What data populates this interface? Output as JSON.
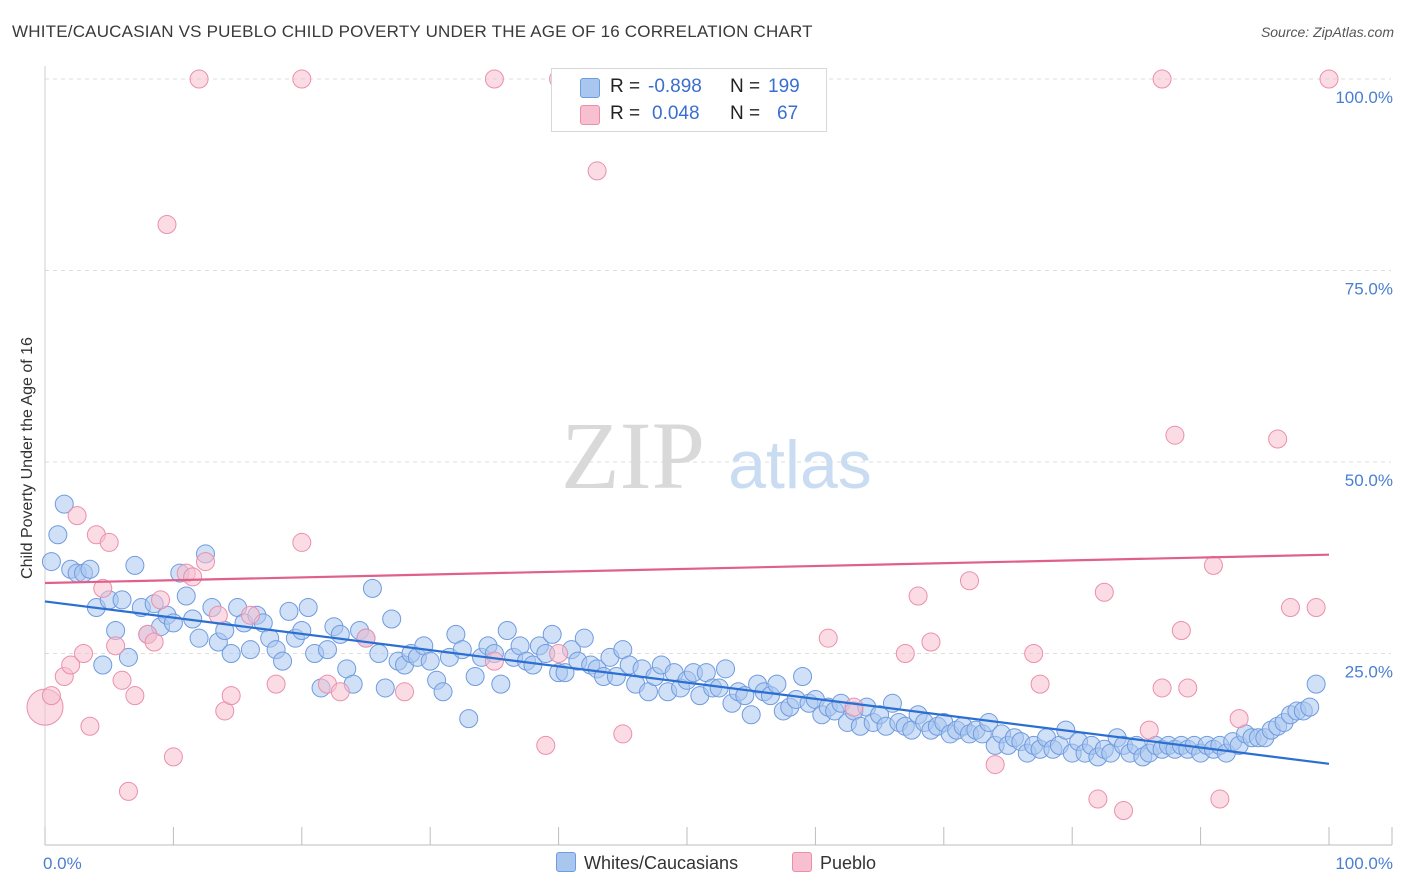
{
  "header": {
    "title": "WHITE/CAUCASIAN VS PUEBLO CHILD POVERTY UNDER THE AGE OF 16 CORRELATION CHART",
    "source": "Source: ZipAtlas.com"
  },
  "watermark": {
    "zip": "ZIP",
    "atlas": "atlas"
  },
  "legend": {
    "r_label": "R =",
    "n_label": "N =",
    "rows": [
      {
        "r": "-0.898",
        "n": "199",
        "color": "#a9c6ef",
        "border": "#6f9be0"
      },
      {
        "r": "0.048",
        "n": "67",
        "color": "#f7bfd0",
        "border": "#eb8fac"
      }
    ]
  },
  "bottom_legend": [
    {
      "label": "Whites/Caucasians",
      "color": "#a9c6ef",
      "border": "#6f9be0"
    },
    {
      "label": "Pueblo",
      "color": "#f7bfd0",
      "border": "#eb8fac"
    }
  ],
  "chart_data": {
    "type": "scatter",
    "title": "WHITE/CAUCASIAN VS PUEBLO CHILD POVERTY UNDER THE AGE OF 16 CORRELATION CHART",
    "xlabel": "",
    "ylabel": "Child Poverty Under the Age of 16",
    "xlim": [
      0,
      100
    ],
    "ylim": [
      0,
      100
    ],
    "x_tick_labels": [
      "0.0%",
      "100.0%"
    ],
    "y_tick_labels": [
      "25.0%",
      "50.0%",
      "75.0%",
      "100.0%"
    ],
    "y_tick_values": [
      25,
      50,
      75,
      100
    ],
    "grid": true,
    "series": [
      {
        "name": "Whites/Caucasians",
        "color": "#a9c6ef",
        "stroke": "#6f9be0",
        "trend": {
          "x": [
            0,
            100
          ],
          "y": [
            31.8,
            10.6
          ],
          "color": "#2b6fd1"
        },
        "points": [
          [
            0.5,
            37
          ],
          [
            1,
            40.5
          ],
          [
            1.5,
            44.5
          ],
          [
            2,
            36
          ],
          [
            2.5,
            35.5
          ],
          [
            3,
            35.5
          ],
          [
            3.5,
            36
          ],
          [
            4,
            31
          ],
          [
            4.5,
            23.5
          ],
          [
            5,
            32
          ],
          [
            5.5,
            28
          ],
          [
            6,
            32
          ],
          [
            6.5,
            24.5
          ],
          [
            7,
            36.5
          ],
          [
            7.5,
            31
          ],
          [
            8,
            27.5
          ],
          [
            8.5,
            31.5
          ],
          [
            9,
            28.5
          ],
          [
            9.5,
            30
          ],
          [
            10,
            29
          ],
          [
            10.5,
            35.5
          ],
          [
            11,
            32.5
          ],
          [
            11.5,
            29.5
          ],
          [
            12,
            27
          ],
          [
            12.5,
            38
          ],
          [
            13,
            31
          ],
          [
            13.5,
            26.5
          ],
          [
            14,
            28
          ],
          [
            14.5,
            25
          ],
          [
            15,
            31
          ],
          [
            15.5,
            29
          ],
          [
            16,
            25.5
          ],
          [
            16.5,
            30
          ],
          [
            17,
            29
          ],
          [
            17.5,
            27
          ],
          [
            18,
            25.5
          ],
          [
            18.5,
            24
          ],
          [
            19,
            30.5
          ],
          [
            19.5,
            27
          ],
          [
            20,
            28
          ],
          [
            20.5,
            31
          ],
          [
            21,
            25
          ],
          [
            21.5,
            20.5
          ],
          [
            22,
            25.5
          ],
          [
            22.5,
            28.5
          ],
          [
            23,
            27.5
          ],
          [
            23.5,
            23
          ],
          [
            24,
            21
          ],
          [
            24.5,
            28
          ],
          [
            25,
            27
          ],
          [
            25.5,
            33.5
          ],
          [
            26,
            25
          ],
          [
            26.5,
            20.5
          ],
          [
            27,
            29.5
          ],
          [
            27.5,
            24
          ],
          [
            28,
            23.5
          ],
          [
            28.5,
            25
          ],
          [
            29,
            24.5
          ],
          [
            29.5,
            26
          ],
          [
            30,
            24
          ],
          [
            30.5,
            21.5
          ],
          [
            31,
            20
          ],
          [
            31.5,
            24.5
          ],
          [
            32,
            27.5
          ],
          [
            32.5,
            25.5
          ],
          [
            33,
            16.5
          ],
          [
            33.5,
            22
          ],
          [
            34,
            24.5
          ],
          [
            34.5,
            26
          ],
          [
            35,
            25
          ],
          [
            35.5,
            21
          ],
          [
            36,
            28
          ],
          [
            36.5,
            24.5
          ],
          [
            37,
            26
          ],
          [
            37.5,
            24
          ],
          [
            38,
            23.5
          ],
          [
            38.5,
            26
          ],
          [
            39,
            25
          ],
          [
            39.5,
            27.5
          ],
          [
            40,
            22.5
          ],
          [
            40.5,
            22.5
          ],
          [
            41,
            25.5
          ],
          [
            41.5,
            24
          ],
          [
            42,
            27
          ],
          [
            42.5,
            23.5
          ],
          [
            43,
            23
          ],
          [
            43.5,
            22
          ],
          [
            44,
            24.5
          ],
          [
            44.5,
            22
          ],
          [
            45,
            25.5
          ],
          [
            45.5,
            23.5
          ],
          [
            46,
            21
          ],
          [
            46.5,
            23
          ],
          [
            47,
            20
          ],
          [
            47.5,
            22
          ],
          [
            48,
            23.5
          ],
          [
            48.5,
            20
          ],
          [
            49,
            22.5
          ],
          [
            49.5,
            20.5
          ],
          [
            50,
            21.5
          ],
          [
            50.5,
            22.5
          ],
          [
            51,
            19.5
          ],
          [
            51.5,
            22.5
          ],
          [
            52,
            20.5
          ],
          [
            52.5,
            20.5
          ],
          [
            53,
            23
          ],
          [
            53.5,
            18.5
          ],
          [
            54,
            20
          ],
          [
            54.5,
            19.5
          ],
          [
            55,
            17
          ],
          [
            55.5,
            21
          ],
          [
            56,
            20
          ],
          [
            56.5,
            19.5
          ],
          [
            57,
            21
          ],
          [
            57.5,
            17.5
          ],
          [
            58,
            18
          ],
          [
            58.5,
            19
          ],
          [
            59,
            22
          ],
          [
            59.5,
            18.5
          ],
          [
            60,
            19
          ],
          [
            60.5,
            17
          ],
          [
            61,
            18
          ],
          [
            61.5,
            17.5
          ],
          [
            62,
            18.5
          ],
          [
            62.5,
            16
          ],
          [
            63,
            17.5
          ],
          [
            63.5,
            15.5
          ],
          [
            64,
            18
          ],
          [
            64.5,
            16
          ],
          [
            65,
            17
          ],
          [
            65.5,
            15.5
          ],
          [
            66,
            18.5
          ],
          [
            66.5,
            16
          ],
          [
            67,
            15.5
          ],
          [
            67.5,
            15
          ],
          [
            68,
            17
          ],
          [
            68.5,
            16
          ],
          [
            69,
            15
          ],
          [
            69.5,
            15.5
          ],
          [
            70,
            16
          ],
          [
            70.5,
            14.5
          ],
          [
            71,
            15
          ],
          [
            71.5,
            15.5
          ],
          [
            72,
            14.5
          ],
          [
            72.5,
            15
          ],
          [
            73,
            14.5
          ],
          [
            73.5,
            16
          ],
          [
            74,
            13
          ],
          [
            74.5,
            14.5
          ],
          [
            75,
            13
          ],
          [
            75.5,
            14
          ],
          [
            76,
            13.5
          ],
          [
            76.5,
            12
          ],
          [
            77,
            13
          ],
          [
            77.5,
            12.5
          ],
          [
            78,
            14
          ],
          [
            78.5,
            12.5
          ],
          [
            79,
            13
          ],
          [
            79.5,
            15
          ],
          [
            80,
            12
          ],
          [
            80.5,
            13.5
          ],
          [
            81,
            12
          ],
          [
            81.5,
            13
          ],
          [
            82,
            11.5
          ],
          [
            82.5,
            12.5
          ],
          [
            83,
            12
          ],
          [
            83.5,
            14
          ],
          [
            84,
            13
          ],
          [
            84.5,
            12
          ],
          [
            85,
            13
          ],
          [
            85.5,
            11.5
          ],
          [
            86,
            12
          ],
          [
            86.5,
            13
          ],
          [
            87,
            12.5
          ],
          [
            87.5,
            13
          ],
          [
            88,
            12.5
          ],
          [
            88.5,
            13
          ],
          [
            89,
            12.5
          ],
          [
            89.5,
            13
          ],
          [
            90,
            12
          ],
          [
            90.5,
            13
          ],
          [
            91,
            12.5
          ],
          [
            91.5,
            13
          ],
          [
            92,
            12
          ],
          [
            92.5,
            13.5
          ],
          [
            93,
            13
          ],
          [
            93.5,
            14.5
          ],
          [
            94,
            14
          ],
          [
            94.5,
            14
          ],
          [
            95,
            14
          ],
          [
            95.5,
            15
          ],
          [
            96,
            15.5
          ],
          [
            96.5,
            16
          ],
          [
            97,
            17
          ],
          [
            97.5,
            17.5
          ],
          [
            98,
            17.5
          ],
          [
            98.5,
            18
          ],
          [
            99,
            21
          ]
        ]
      },
      {
        "name": "Pueblo",
        "color": "#f7bfd0",
        "stroke": "#eb8fac",
        "trend": {
          "x": [
            0,
            100
          ],
          "y": [
            34.2,
            37.9
          ],
          "color": "#e0608c"
        },
        "points": [
          [
            0,
            18
          ],
          [
            0.5,
            19.5
          ],
          [
            1.5,
            22
          ],
          [
            2,
            23.5
          ],
          [
            2.5,
            43
          ],
          [
            3,
            25
          ],
          [
            3.5,
            15.5
          ],
          [
            4,
            40.5
          ],
          [
            4.5,
            33.5
          ],
          [
            5,
            39.5
          ],
          [
            5.5,
            26
          ],
          [
            6,
            21.5
          ],
          [
            6.5,
            7
          ],
          [
            7,
            19.5
          ],
          [
            8,
            27.5
          ],
          [
            8.5,
            26.5
          ],
          [
            9,
            32
          ],
          [
            9.5,
            81
          ],
          [
            10,
            11.5
          ],
          [
            11,
            35.5
          ],
          [
            11.5,
            35
          ],
          [
            12.5,
            37
          ],
          [
            13.5,
            30
          ],
          [
            14,
            17.5
          ],
          [
            14.5,
            19.5
          ],
          [
            16,
            30
          ],
          [
            18,
            21
          ],
          [
            20,
            39.5
          ],
          [
            22,
            21
          ],
          [
            23,
            20
          ],
          [
            25,
            27
          ],
          [
            28,
            20
          ],
          [
            35,
            24
          ],
          [
            39,
            13
          ],
          [
            40,
            25
          ],
          [
            43,
            88
          ],
          [
            45,
            14.5
          ],
          [
            61,
            27
          ],
          [
            63,
            18
          ],
          [
            67,
            25
          ],
          [
            68,
            32.5
          ],
          [
            69,
            26.5
          ],
          [
            72,
            34.5
          ],
          [
            74,
            10.5
          ],
          [
            77,
            25
          ],
          [
            77.5,
            21
          ],
          [
            82,
            6
          ],
          [
            82.5,
            33
          ],
          [
            84,
            4.5
          ],
          [
            86,
            15
          ],
          [
            87,
            20.5
          ],
          [
            88,
            53.5
          ],
          [
            88.5,
            28
          ],
          [
            89,
            20.5
          ],
          [
            91,
            36.5
          ],
          [
            91.5,
            6
          ],
          [
            93,
            16.5
          ],
          [
            96,
            53
          ],
          [
            97,
            31
          ],
          [
            99,
            31
          ],
          [
            12,
            100
          ],
          [
            20,
            100
          ],
          [
            35,
            100
          ],
          [
            40,
            100
          ],
          [
            60,
            100
          ],
          [
            87,
            100
          ],
          [
            100,
            100
          ]
        ]
      }
    ]
  }
}
